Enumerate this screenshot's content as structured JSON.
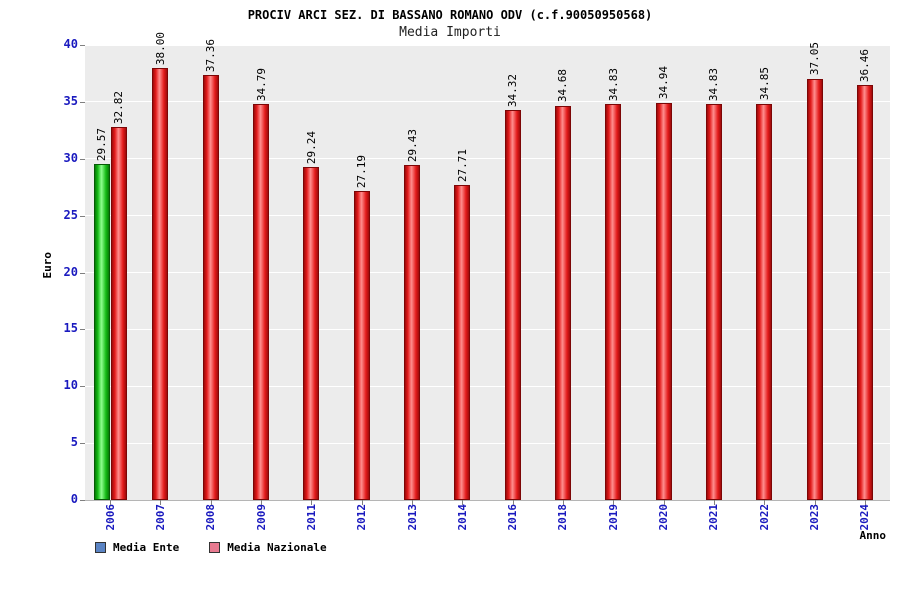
{
  "header": {
    "title": "PROCIV ARCI SEZ. DI BASSANO ROMANO ODV (c.f.90050950568)",
    "subtitle": "Media Importi"
  },
  "legend": [
    {
      "label": "Media Ente",
      "color": "#5b84c4"
    },
    {
      "label": "Media Nazionale",
      "color": "#e87a90"
    }
  ],
  "colors": {
    "bar_media_ente": "#15bb15",
    "bar_media_nazionale": "#e31b1b",
    "axis_tick_text": "#1a1abf",
    "plot_background": "#ececec",
    "gridline": "#ffffff"
  },
  "chart_data": {
    "type": "bar",
    "title": "Media Importi",
    "xlabel": "Anno",
    "ylabel": "Euro",
    "ylim": [
      0,
      40
    ],
    "yticks": [
      0,
      5,
      10,
      15,
      20,
      25,
      30,
      35,
      40
    ],
    "grid": true,
    "legend_position": "bottom-left",
    "categories": [
      "2006",
      "2007",
      "2008",
      "2009",
      "2011",
      "2012",
      "2013",
      "2014",
      "2016",
      "2018",
      "2019",
      "2020",
      "2021",
      "2022",
      "2023",
      "2024"
    ],
    "series": [
      {
        "name": "Media Ente",
        "values": [
          29.57,
          null,
          null,
          null,
          null,
          null,
          null,
          null,
          null,
          null,
          null,
          null,
          null,
          null,
          null,
          null
        ]
      },
      {
        "name": "Media Nazionale",
        "values": [
          32.82,
          38.0,
          37.36,
          34.79,
          29.24,
          27.19,
          29.43,
          27.71,
          34.32,
          34.68,
          34.83,
          34.94,
          34.83,
          34.85,
          37.05,
          36.46
        ]
      }
    ]
  }
}
